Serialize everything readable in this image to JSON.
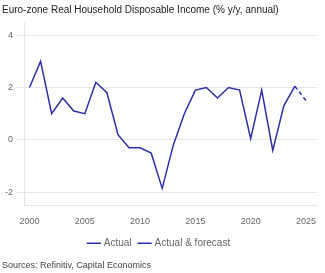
{
  "chart_data": {
    "type": "line",
    "title": "Euro-zone Real Household Disposable Income (% y/y, annual)",
    "annotations": [
      "Sources: Refinitiv, Capital Economics"
    ],
    "x": [
      2000,
      2001,
      2002,
      2003,
      2004,
      2005,
      2006,
      2007,
      2008,
      2009,
      2010,
      2011,
      2012,
      2013,
      2014,
      2015,
      2016,
      2017,
      2018,
      2019,
      2020,
      2021,
      2022,
      2023,
      2024,
      2025
    ],
    "series": [
      {
        "name": "Actual",
        "color": "#2E2EAA",
        "line_style": "solid",
        "values": [
          2.0,
          3.0,
          1.0,
          1.6,
          1.1,
          1.0,
          2.2,
          1.8,
          0.2,
          -0.3,
          -0.3,
          -0.5,
          -1.85,
          -0.2,
          1.0,
          1.9,
          2.0,
          1.6,
          2.0,
          1.9,
          0.05,
          1.9,
          -0.4,
          1.3,
          2.05,
          null
        ]
      },
      {
        "name": "Actual & forecast",
        "color": "#2E2EAA",
        "line_style": "dashed",
        "values": [
          null,
          null,
          null,
          null,
          null,
          null,
          null,
          null,
          null,
          null,
          null,
          null,
          null,
          null,
          null,
          null,
          null,
          null,
          null,
          null,
          null,
          null,
          null,
          null,
          2.05,
          1.5
        ]
      }
    ],
    "xlim": [
      1999.5,
      2026
    ],
    "xticks": [
      2000,
      2005,
      2010,
      2015,
      2020,
      2025
    ],
    "ylim": [
      -2.5,
      4.5
    ],
    "yticks": [
      -2,
      0,
      2,
      4
    ],
    "grid": "y",
    "legend": "bottom"
  }
}
